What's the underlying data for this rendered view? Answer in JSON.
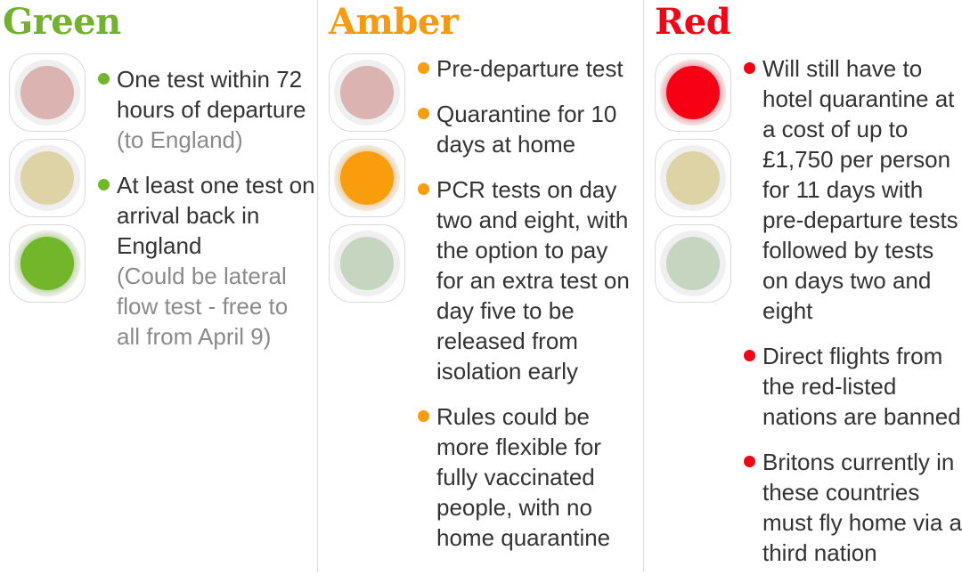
{
  "colors": {
    "green_accent": "#72b22c",
    "amber_accent": "#f8990e",
    "red_accent": "#f50418",
    "bright_green_lamp": "#72b62a",
    "bright_amber_lamp": "#f99d0d",
    "bright_red_lamp": "#f70014",
    "muted_red_lamp": "#dbb3b1",
    "muted_amber_lamp": "#ddd3a5",
    "muted_green_lamp": "#c5d5bf",
    "body_text": "#333333",
    "note_text": "#8a8a8a"
  },
  "columns": [
    {
      "id": "green",
      "title": "Green",
      "active_lamp": "green",
      "items": [
        {
          "text": "One test within 72\nhours of departure",
          "note": "(to England)"
        },
        {
          "text": "At least one test on\narrival back in\nEngland",
          "note": "(Could be lateral\nflow test - free to\nall from April 9)"
        }
      ]
    },
    {
      "id": "amber",
      "title": "Amber",
      "active_lamp": "amber",
      "items": [
        {
          "text": "Pre-departure test"
        },
        {
          "text": "Quarantine for 10\ndays at home"
        },
        {
          "text": "PCR tests on day\ntwo and eight, with\nthe option to pay\nfor an extra test on\nday five to be\nreleased from\nisolation early"
        },
        {
          "text": "Rules could be\nmore flexible for\nfully vaccinated\npeople, with no\nhome quarantine"
        }
      ]
    },
    {
      "id": "red",
      "title": "Red",
      "active_lamp": "red",
      "items": [
        {
          "text": "Will still have to\nhotel quarantine at\na cost of up to\n£1,750 per person\nfor 11 days with\npre-departure tests\nfollowed by tests\non days two and\neight"
        },
        {
          "text": "Direct flights from\nthe red-listed\nnations are banned"
        },
        {
          "text": "Britons currently in\nthese countries\nmust fly home via a\nthird nation"
        }
      ]
    }
  ]
}
